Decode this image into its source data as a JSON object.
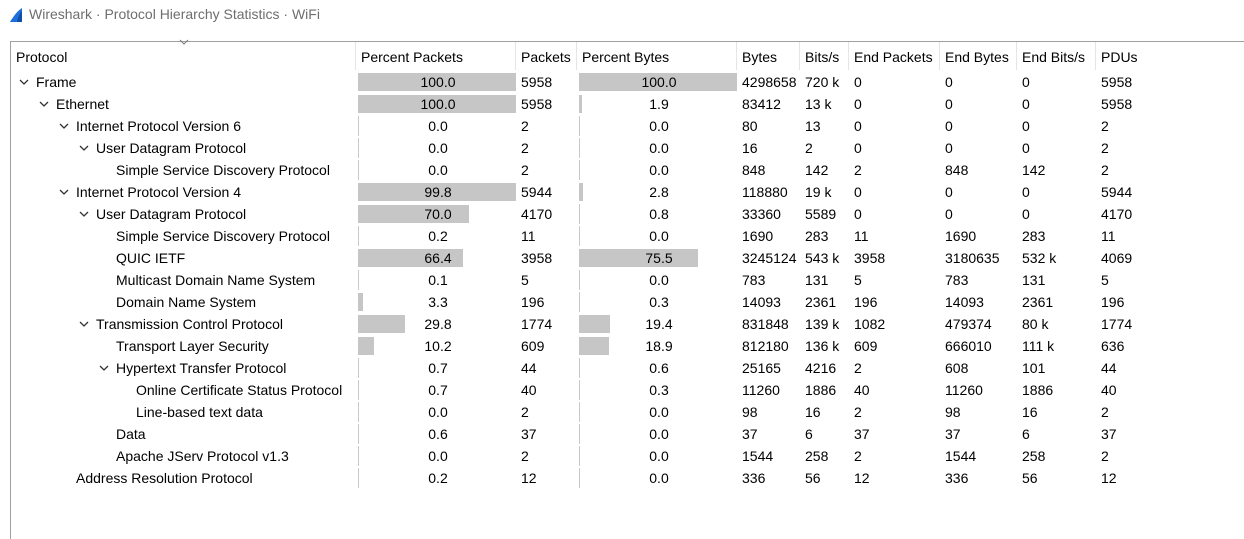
{
  "window": {
    "title": "Wireshark · Protocol Hierarchy Statistics · WiFi",
    "icon": "wireshark-fin-icon",
    "accent": "#1e6fd9"
  },
  "columns": [
    "Protocol",
    "Percent Packets",
    "Packets",
    "Percent Bytes",
    "Bytes",
    "Bits/s",
    "End Packets",
    "End Bytes",
    "End Bits/s",
    "PDUs"
  ],
  "rows": [
    {
      "name": "Frame",
      "depth": 0,
      "expanded": true,
      "pct_packets": "100.0",
      "packets": "5958",
      "pct_bytes": "100.0",
      "bytes": "4298658",
      "bits": "720 k",
      "end_packets": "0",
      "end_bytes": "0",
      "end_bits": "0",
      "pdus": "5958"
    },
    {
      "name": "Ethernet",
      "depth": 1,
      "expanded": true,
      "pct_packets": "100.0",
      "packets": "5958",
      "pct_bytes": "1.9",
      "bytes": "83412",
      "bits": "13 k",
      "end_packets": "0",
      "end_bytes": "0",
      "end_bits": "0",
      "pdus": "5958"
    },
    {
      "name": "Internet Protocol Version 6",
      "depth": 2,
      "expanded": true,
      "pct_packets": "0.0",
      "packets": "2",
      "pct_bytes": "0.0",
      "bytes": "80",
      "bits": "13",
      "end_packets": "0",
      "end_bytes": "0",
      "end_bits": "0",
      "pdus": "2"
    },
    {
      "name": "User Datagram Protocol",
      "depth": 3,
      "expanded": true,
      "pct_packets": "0.0",
      "packets": "2",
      "pct_bytes": "0.0",
      "bytes": "16",
      "bits": "2",
      "end_packets": "0",
      "end_bytes": "0",
      "end_bits": "0",
      "pdus": "2"
    },
    {
      "name": "Simple Service Discovery Protocol",
      "depth": 4,
      "expanded": null,
      "pct_packets": "0.0",
      "packets": "2",
      "pct_bytes": "0.0",
      "bytes": "848",
      "bits": "142",
      "end_packets": "2",
      "end_bytes": "848",
      "end_bits": "142",
      "pdus": "2"
    },
    {
      "name": "Internet Protocol Version 4",
      "depth": 2,
      "expanded": true,
      "pct_packets": "99.8",
      "packets": "5944",
      "pct_bytes": "2.8",
      "bytes": "118880",
      "bits": "19 k",
      "end_packets": "0",
      "end_bytes": "0",
      "end_bits": "0",
      "pdus": "5944"
    },
    {
      "name": "User Datagram Protocol",
      "depth": 3,
      "expanded": true,
      "pct_packets": "70.0",
      "packets": "4170",
      "pct_bytes": "0.8",
      "bytes": "33360",
      "bits": "5589",
      "end_packets": "0",
      "end_bytes": "0",
      "end_bits": "0",
      "pdus": "4170"
    },
    {
      "name": "Simple Service Discovery Protocol",
      "depth": 4,
      "expanded": null,
      "pct_packets": "0.2",
      "packets": "11",
      "pct_bytes": "0.0",
      "bytes": "1690",
      "bits": "283",
      "end_packets": "11",
      "end_bytes": "1690",
      "end_bits": "283",
      "pdus": "11"
    },
    {
      "name": "QUIC IETF",
      "depth": 4,
      "expanded": null,
      "pct_packets": "66.4",
      "packets": "3958",
      "pct_bytes": "75.5",
      "bytes": "3245124",
      "bits": "543 k",
      "end_packets": "3958",
      "end_bytes": "3180635",
      "end_bits": "532 k",
      "pdus": "4069"
    },
    {
      "name": "Multicast Domain Name System",
      "depth": 4,
      "expanded": null,
      "pct_packets": "0.1",
      "packets": "5",
      "pct_bytes": "0.0",
      "bytes": "783",
      "bits": "131",
      "end_packets": "5",
      "end_bytes": "783",
      "end_bits": "131",
      "pdus": "5"
    },
    {
      "name": "Domain Name System",
      "depth": 4,
      "expanded": null,
      "pct_packets": "3.3",
      "packets": "196",
      "pct_bytes": "0.3",
      "bytes": "14093",
      "bits": "2361",
      "end_packets": "196",
      "end_bytes": "14093",
      "end_bits": "2361",
      "pdus": "196"
    },
    {
      "name": "Transmission Control Protocol",
      "depth": 3,
      "expanded": true,
      "pct_packets": "29.8",
      "packets": "1774",
      "pct_bytes": "19.4",
      "bytes": "831848",
      "bits": "139 k",
      "end_packets": "1082",
      "end_bytes": "479374",
      "end_bits": "80 k",
      "pdus": "1774"
    },
    {
      "name": "Transport Layer Security",
      "depth": 4,
      "expanded": null,
      "pct_packets": "10.2",
      "packets": "609",
      "pct_bytes": "18.9",
      "bytes": "812180",
      "bits": "136 k",
      "end_packets": "609",
      "end_bytes": "666010",
      "end_bits": "111 k",
      "pdus": "636"
    },
    {
      "name": "Hypertext Transfer Protocol",
      "depth": 4,
      "expanded": true,
      "pct_packets": "0.7",
      "packets": "44",
      "pct_bytes": "0.6",
      "bytes": "25165",
      "bits": "4216",
      "end_packets": "2",
      "end_bytes": "608",
      "end_bits": "101",
      "pdus": "44"
    },
    {
      "name": "Online Certificate Status Protocol",
      "depth": 5,
      "expanded": null,
      "pct_packets": "0.7",
      "packets": "40",
      "pct_bytes": "0.3",
      "bytes": "11260",
      "bits": "1886",
      "end_packets": "40",
      "end_bytes": "11260",
      "end_bits": "1886",
      "pdus": "40"
    },
    {
      "name": "Line-based text data",
      "depth": 5,
      "expanded": null,
      "pct_packets": "0.0",
      "packets": "2",
      "pct_bytes": "0.0",
      "bytes": "98",
      "bits": "16",
      "end_packets": "2",
      "end_bytes": "98",
      "end_bits": "16",
      "pdus": "2"
    },
    {
      "name": "Data",
      "depth": 4,
      "expanded": null,
      "pct_packets": "0.6",
      "packets": "37",
      "pct_bytes": "0.0",
      "bytes": "37",
      "bits": "6",
      "end_packets": "37",
      "end_bytes": "37",
      "end_bits": "6",
      "pdus": "37"
    },
    {
      "name": "Apache JServ Protocol v1.3",
      "depth": 4,
      "expanded": null,
      "pct_packets": "0.0",
      "packets": "2",
      "pct_bytes": "0.0",
      "bytes": "1544",
      "bits": "258",
      "end_packets": "2",
      "end_bytes": "1544",
      "end_bits": "258",
      "pdus": "2"
    },
    {
      "name": "Address Resolution Protocol",
      "depth": 2,
      "expanded": null,
      "pct_packets": "0.2",
      "packets": "12",
      "pct_bytes": "0.0",
      "bytes": "336",
      "bits": "56",
      "end_packets": "12",
      "end_bytes": "336",
      "end_bits": "56",
      "pdus": "12"
    }
  ],
  "colors": {
    "bar": "#c6c6c6",
    "border": "#a0a0a0",
    "title_text": "#6e6e6e"
  }
}
